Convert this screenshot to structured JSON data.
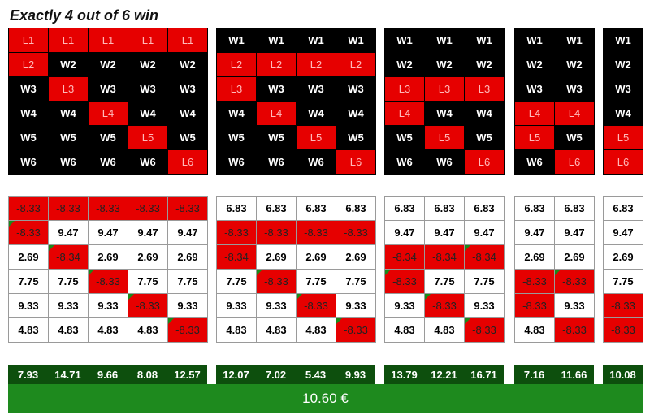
{
  "title": "Exactly 4 out of 6 win",
  "groups": [
    {
      "matrix": [
        [
          "L1",
          "L1",
          "L1",
          "L1",
          "L1"
        ],
        [
          "L2",
          "W2",
          "W2",
          "W2",
          "W2"
        ],
        [
          "W3",
          "L3",
          "W3",
          "W3",
          "W3"
        ],
        [
          "W4",
          "W4",
          "L4",
          "W4",
          "W4"
        ],
        [
          "W5",
          "W5",
          "W5",
          "L5",
          "W5"
        ],
        [
          "W6",
          "W6",
          "W6",
          "W6",
          "L6"
        ]
      ],
      "values": [
        [
          "-8.33",
          "-8.33",
          "-8.33",
          "-8.33",
          "-8.33"
        ],
        [
          "-8.33",
          "9.47",
          "9.47",
          "9.47",
          "9.47"
        ],
        [
          "2.69",
          "-8.34",
          "2.69",
          "2.69",
          "2.69"
        ],
        [
          "7.75",
          "7.75",
          "-8.33",
          "7.75",
          "7.75"
        ],
        [
          "9.33",
          "9.33",
          "9.33",
          "-8.33",
          "9.33"
        ],
        [
          "4.83",
          "4.83",
          "4.83",
          "4.83",
          "-8.33"
        ]
      ],
      "totals": [
        "7.93",
        "14.71",
        "9.66",
        "8.08",
        "12.57"
      ]
    },
    {
      "matrix": [
        [
          "W1",
          "W1",
          "W1",
          "W1"
        ],
        [
          "L2",
          "L2",
          "L2",
          "L2"
        ],
        [
          "L3",
          "W3",
          "W3",
          "W3"
        ],
        [
          "W4",
          "L4",
          "W4",
          "W4"
        ],
        [
          "W5",
          "W5",
          "L5",
          "W5"
        ],
        [
          "W6",
          "W6",
          "W6",
          "L6"
        ]
      ],
      "values": [
        [
          "6.83",
          "6.83",
          "6.83",
          "6.83"
        ],
        [
          "-8.33",
          "-8.33",
          "-8.33",
          "-8.33"
        ],
        [
          "-8.34",
          "2.69",
          "2.69",
          "2.69"
        ],
        [
          "7.75",
          "-8.33",
          "7.75",
          "7.75"
        ],
        [
          "9.33",
          "9.33",
          "-8.33",
          "9.33"
        ],
        [
          "4.83",
          "4.83",
          "4.83",
          "-8.33"
        ]
      ],
      "totals": [
        "12.07",
        "7.02",
        "5.43",
        "9.93"
      ]
    },
    {
      "matrix": [
        [
          "W1",
          "W1",
          "W1"
        ],
        [
          "W2",
          "W2",
          "W2"
        ],
        [
          "L3",
          "L3",
          "L3"
        ],
        [
          "L4",
          "W4",
          "W4"
        ],
        [
          "W5",
          "L5",
          "W5"
        ],
        [
          "W6",
          "W6",
          "L6"
        ]
      ],
      "values": [
        [
          "6.83",
          "6.83",
          "6.83"
        ],
        [
          "9.47",
          "9.47",
          "9.47"
        ],
        [
          "-8.34",
          "-8.34",
          "-8.34"
        ],
        [
          "-8.33",
          "7.75",
          "7.75"
        ],
        [
          "9.33",
          "-8.33",
          "9.33"
        ],
        [
          "4.83",
          "4.83",
          "-8.33"
        ]
      ],
      "totals": [
        "13.79",
        "12.21",
        "16.71"
      ]
    },
    {
      "matrix": [
        [
          "W1",
          "W1"
        ],
        [
          "W2",
          "W2"
        ],
        [
          "W3",
          "W3"
        ],
        [
          "L4",
          "L4"
        ],
        [
          "L5",
          "W5"
        ],
        [
          "W6",
          "L6"
        ]
      ],
      "values": [
        [
          "6.83",
          "6.83"
        ],
        [
          "9.47",
          "9.47"
        ],
        [
          "2.69",
          "2.69"
        ],
        [
          "-8.33",
          "-8.33"
        ],
        [
          "-8.33",
          "9.33"
        ],
        [
          "4.83",
          "-8.33"
        ]
      ],
      "totals": [
        "7.16",
        "11.66"
      ]
    },
    {
      "matrix": [
        [
          "W1"
        ],
        [
          "W2"
        ],
        [
          "W3"
        ],
        [
          "W4"
        ],
        [
          "L5"
        ],
        [
          "L6"
        ]
      ],
      "values": [
        [
          "6.83"
        ],
        [
          "9.47"
        ],
        [
          "2.69"
        ],
        [
          "7.75"
        ],
        [
          "-8.33"
        ],
        [
          "-8.33"
        ]
      ],
      "totals": [
        "10.08"
      ]
    }
  ],
  "grand_total": "10.60 €",
  "colors": {
    "win_bg": "#000000",
    "lose_bg": "#e60000",
    "totals_bg": "#0d4f0d",
    "grand_bg": "#1e8a1e"
  }
}
